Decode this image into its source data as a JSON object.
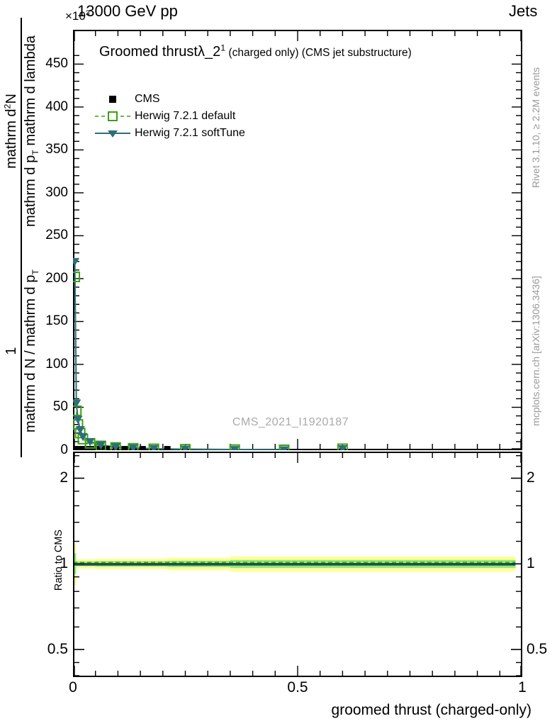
{
  "header": {
    "scale_base": "×10",
    "scale_exp": "3",
    "beam": "13000 GeV pp",
    "region": "Jets"
  },
  "plot_title": {
    "text": "Groomed thrust",
    "lambda": "λ_2",
    "exponent": "1",
    "qualifier": " (charged only) (CMS jet substructure)"
  },
  "legend": {
    "items": [
      {
        "label": "CMS"
      },
      {
        "label": "Herwig 7.2.1 default"
      },
      {
        "label": "Herwig 7.2.1 softTune"
      }
    ]
  },
  "ylabel": {
    "upper_num_a": "mathrm d",
    "upper_num_sup": "2",
    "upper_num_b": "N",
    "upper_den_a": "mathrm d p",
    "upper_den_sub": "T",
    "upper_den_b": " mathrm d lambda",
    "lower_num": "1",
    "lower_den_a": "mathrm d N / mathrm d p",
    "lower_den_sub": "T"
  },
  "ratio_panel": {
    "ylabel": "Ratio to CMS"
  },
  "sidebar_right": {
    "top_text": "Rivet 3.1.10, ≥ 2.2M events",
    "bottom_text": "mcplots.cern.ch [arXiv:1306.3436]"
  },
  "watermark": "CMS_2021_I1920187",
  "xaxis_title": "groomed thrust (charged-only)",
  "chart_data": {
    "type": "line",
    "title": "Groomed thrust λ_2^1 (charged only) (CMS jet substructure)",
    "xlabel": "groomed thrust (charged-only)",
    "ylabel": "1/(dN/dp_T) d²N/(dp_T dlambda)",
    "y_units": "×10^3",
    "xlim": [
      0,
      1
    ],
    "ylim": [
      0,
      490
    ],
    "x_major_ticks": [
      {
        "v": 0,
        "label": "0"
      },
      {
        "v": 0.5,
        "label": "0.5"
      },
      {
        "v": 1,
        "label": "1"
      }
    ],
    "x_minor_step": 0.05,
    "y_major_ticks": [
      {
        "v": 0,
        "label": "0"
      },
      {
        "v": 50,
        "label": "50"
      },
      {
        "v": 100,
        "label": "100"
      },
      {
        "v": 150,
        "label": "150"
      },
      {
        "v": 200,
        "label": "200"
      },
      {
        "v": 250,
        "label": "250"
      },
      {
        "v": 300,
        "label": "300"
      },
      {
        "v": 350,
        "label": "350"
      },
      {
        "v": 400,
        "label": "400"
      },
      {
        "v": 450,
        "label": "450"
      }
    ],
    "y_minor_step": 10,
    "series": [
      {
        "name": "CMS",
        "color": "#000000",
        "marker": "filled-square",
        "line": "none",
        "x": [
          0.004,
          0.0075,
          0.011,
          0.016,
          0.022,
          0.03,
          0.038,
          0.05,
          0.062,
          0.075,
          0.095,
          0.115,
          0.134,
          0.155,
          0.18,
          0.21,
          0.25,
          0.6
        ],
        "y": [
          1.2,
          1.2,
          1.2,
          1.2,
          1.2,
          1.2,
          1.2,
          1.2,
          1.2,
          1.2,
          1.2,
          1.2,
          1.2,
          1.2,
          1.2,
          1.2,
          1.2,
          1.2
        ]
      },
      {
        "name": "Herwig 7.2.1 default",
        "color": "#3ca014",
        "marker": "open-square",
        "line": "dashed",
        "line_points": 13,
        "x": [
          0.004,
          0.0075,
          0.011,
          0.016,
          0.022,
          0.038,
          0.062,
          0.095,
          0.134,
          0.18,
          0.25,
          0.36,
          0.47,
          0.6
        ],
        "y": [
          202,
          46,
          30,
          20,
          13,
          8,
          5,
          3.2,
          2.2,
          1.6,
          1.1,
          0.7,
          0.45,
          1.7
        ]
      },
      {
        "name": "Herwig 7.2.1 softTune",
        "color": "#2d6e78",
        "marker": "filled-triangle-down",
        "line": "solid",
        "line_points": 13,
        "x": [
          0.004,
          0.0075,
          0.011,
          0.016,
          0.022,
          0.038,
          0.062,
          0.095,
          0.134,
          0.18,
          0.25,
          0.36,
          0.47,
          0.6
        ],
        "y": [
          220,
          55,
          36,
          24,
          16,
          10,
          6,
          3.8,
          2.6,
          1.8,
          1.2,
          0.8,
          0.5,
          1.7
        ]
      }
    ],
    "ratio": {
      "ylim": [
        0.4,
        2.48
      ],
      "scale": "log",
      "y_major_ticks": [
        {
          "v": 2,
          "label": "2"
        },
        {
          "v": 1,
          "label": "1"
        },
        {
          "v": 0.5,
          "label": "0.5"
        }
      ],
      "y_minor_ticks": [
        0.4,
        0.45,
        0.6,
        0.7,
        0.8,
        0.9,
        1.2,
        1.4,
        1.6,
        1.8,
        2.2,
        2.4
      ],
      "bands": [
        {
          "color": "#ffff99",
          "segments": [
            [
              0,
              0.007,
              0.84,
              1.17
            ],
            [
              0.007,
              0.05,
              0.962,
              1.038
            ],
            [
              0.05,
              0.21,
              0.957,
              1.043
            ],
            [
              0.21,
              0.35,
              0.948,
              1.052
            ],
            [
              0.35,
              0.985,
              0.938,
              1.062
            ]
          ]
        },
        {
          "color": "#8de87c",
          "segments": [
            [
              0,
              0.007,
              0.92,
              1.09
            ],
            [
              0.007,
              0.05,
              0.981,
              1.019
            ],
            [
              0.05,
              0.21,
              0.978,
              1.022
            ],
            [
              0.21,
              0.35,
              0.974,
              1.026
            ],
            [
              0.35,
              0.985,
              0.968,
              1.032
            ]
          ]
        }
      ],
      "lines": [
        {
          "name": "reference",
          "color": "#000000",
          "style": "solid",
          "y": 1.0
        },
        {
          "name": "Herwig 7.2.1 default",
          "color": "#3ca014",
          "style": "dashed",
          "y": 1.012
        },
        {
          "name": "Herwig 7.2.1 softTune",
          "color": "#2d6e78",
          "style": "solid",
          "y": 0.99
        }
      ]
    }
  }
}
